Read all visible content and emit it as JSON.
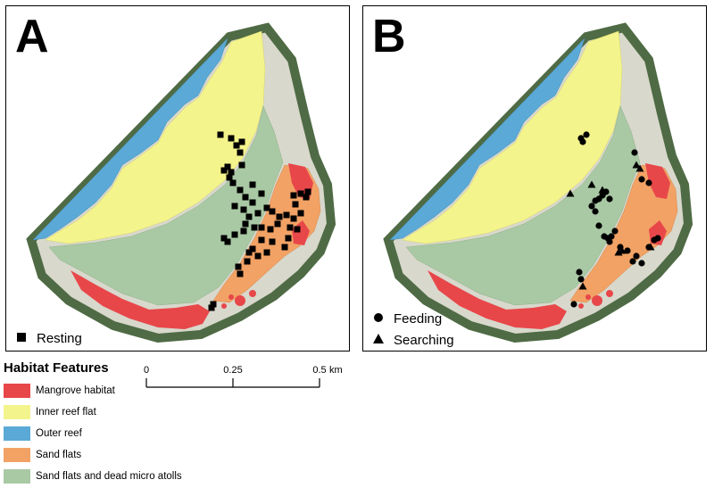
{
  "panels": [
    {
      "letter": "A",
      "legend": [
        {
          "symbol": "square",
          "label": "Resting"
        }
      ]
    },
    {
      "letter": "B",
      "legend": [
        {
          "symbol": "circle",
          "label": "Feeding"
        },
        {
          "symbol": "triangle",
          "label": "Searching"
        }
      ]
    }
  ],
  "habitat_legend": {
    "title": "Habitat Features",
    "items": [
      {
        "label": "Mangrove habitat",
        "color": "#e8474a"
      },
      {
        "label": "Inner reef flat",
        "color": "#f4f48c"
      },
      {
        "label": "Outer reef",
        "color": "#5aa9d6"
      },
      {
        "label": "Sand flats",
        "color": "#f2a265"
      },
      {
        "label": "Sand flats and dead micro atolls",
        "color": "#a9c9a4"
      }
    ]
  },
  "scale_bar": {
    "ticks": [
      "0",
      "0.25",
      "0.5"
    ],
    "unit": "km"
  },
  "colors": {
    "vegetation": "#4f6b45",
    "beach": "#d8d8cc"
  },
  "observations": {
    "resting_count": 55,
    "feeding_count": 30,
    "searching_count": 9
  }
}
